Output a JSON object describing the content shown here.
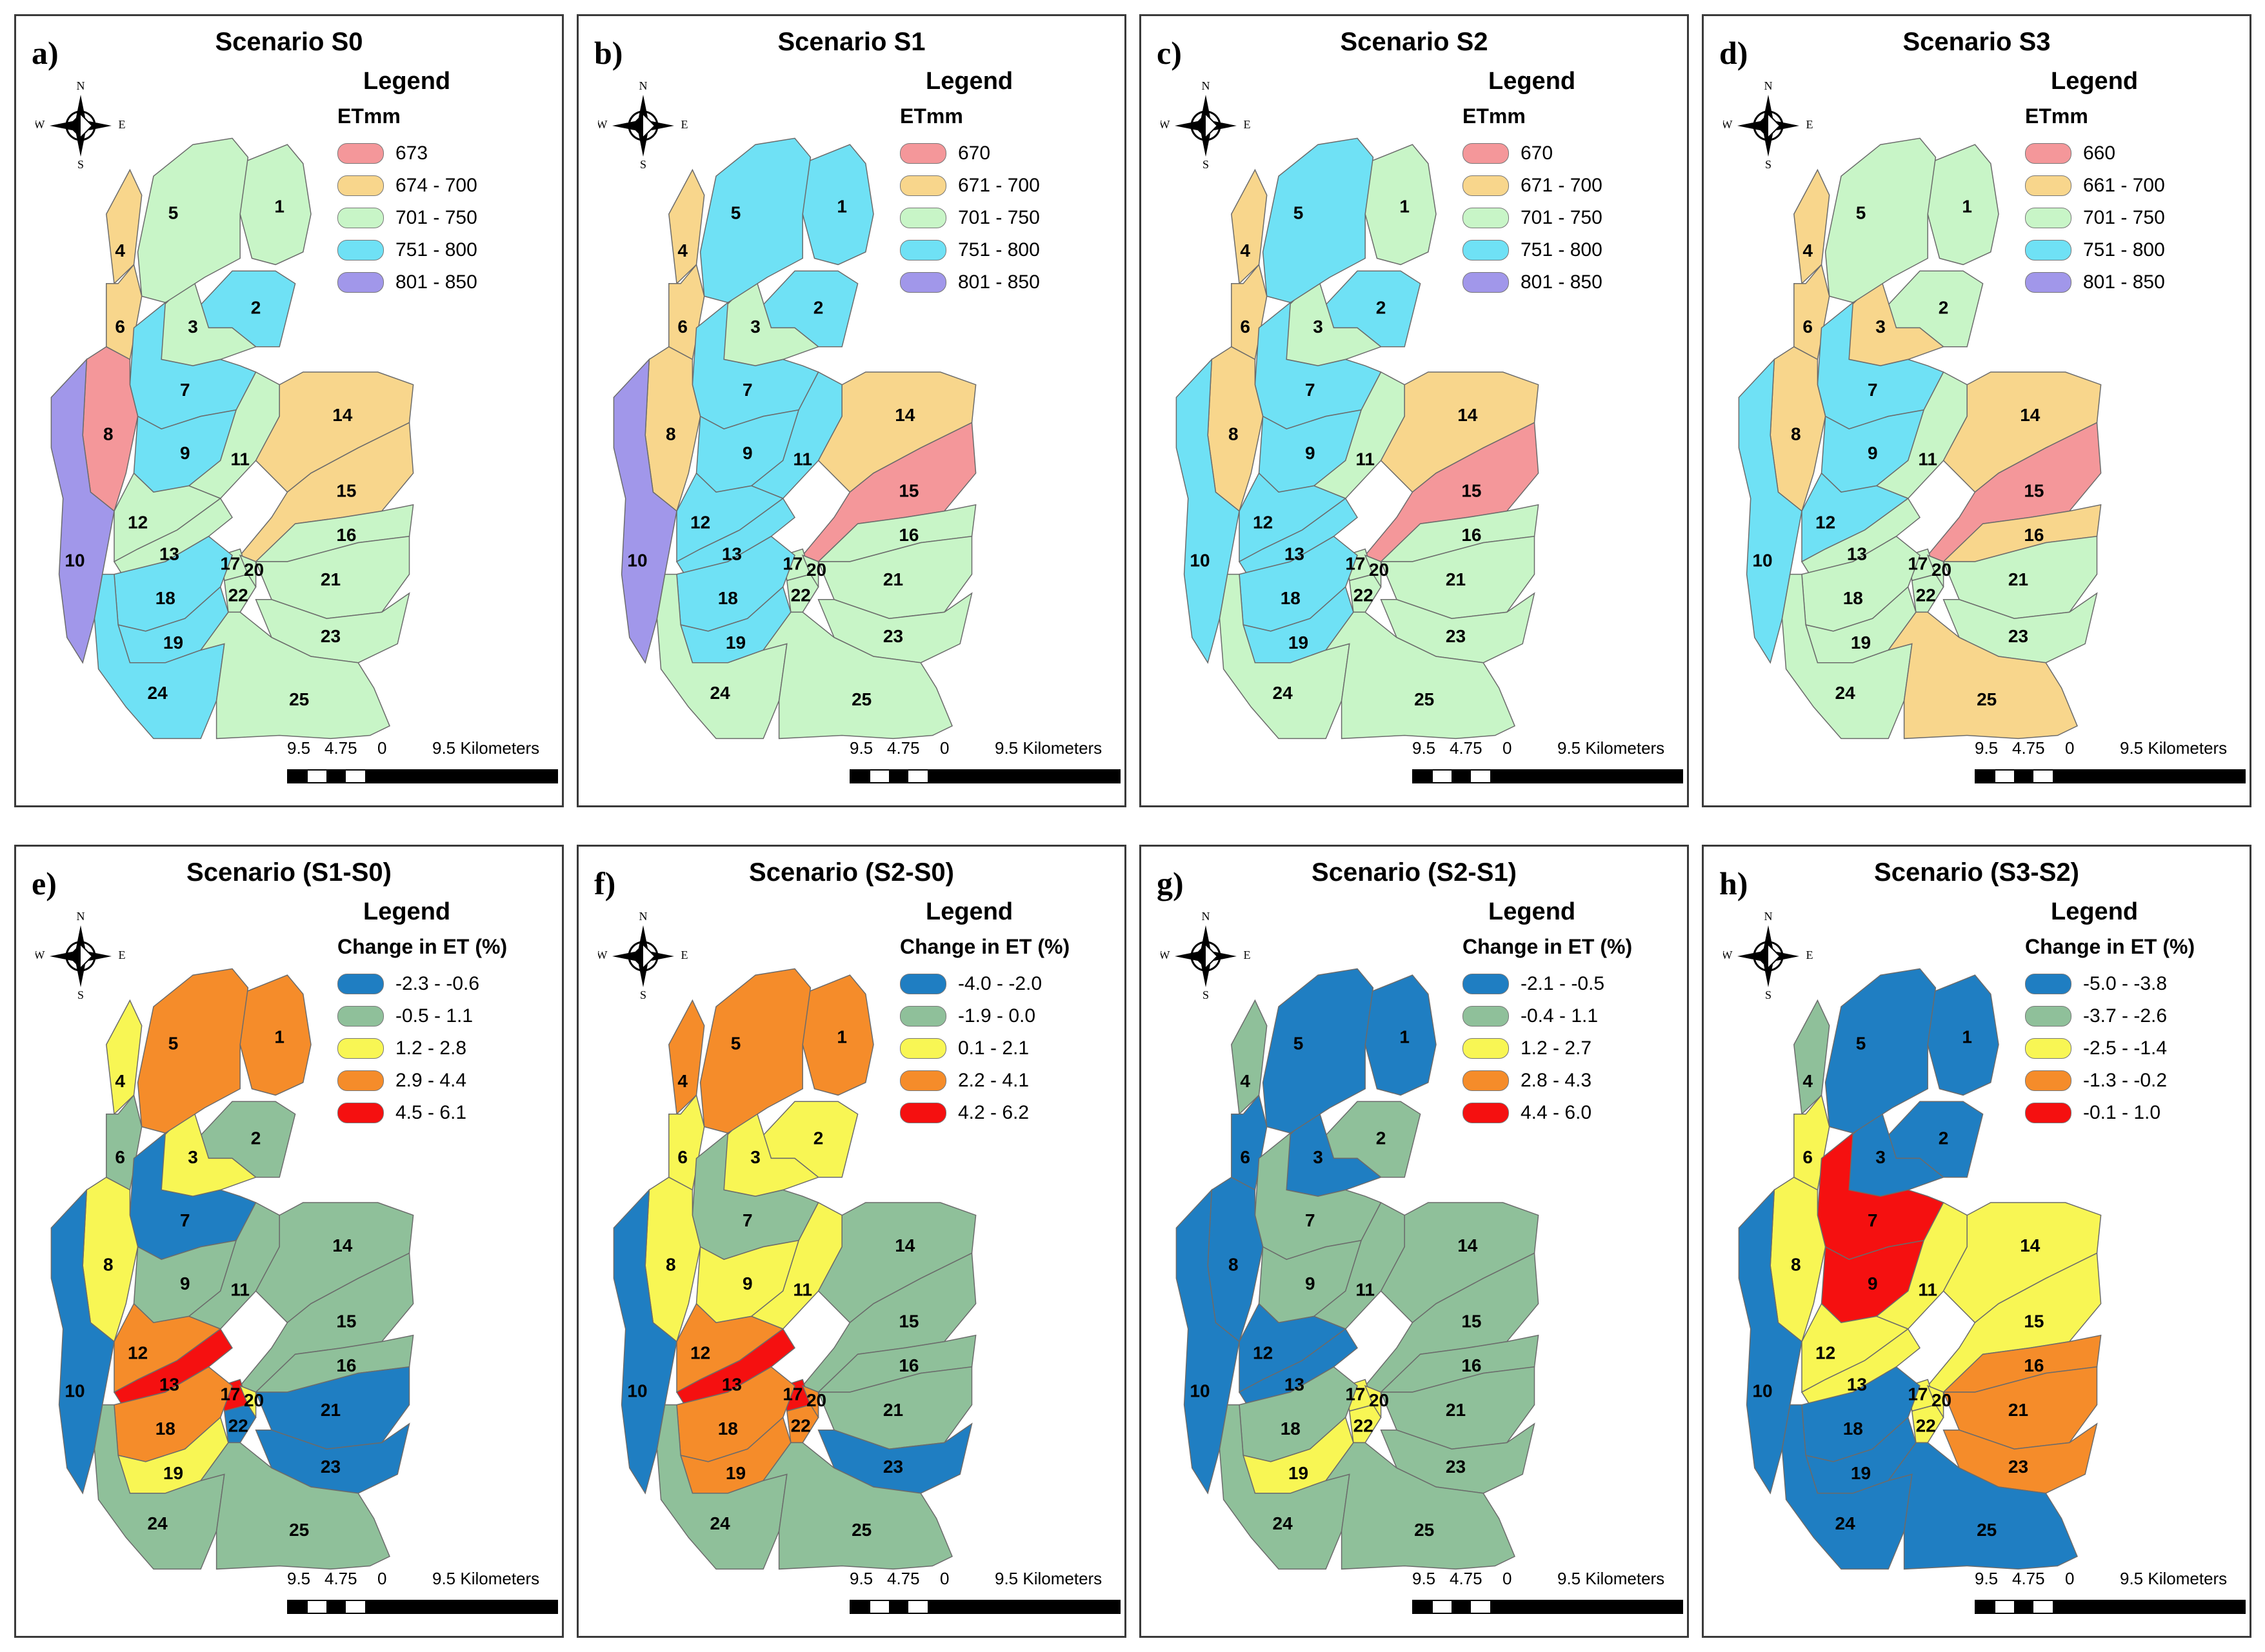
{
  "panels": [
    {
      "letter": "a)",
      "title": "Scenario S0",
      "legend_heading": "Legend",
      "legend_sub": "ETmm",
      "legend": [
        {
          "label": "673",
          "color": "#f4979a"
        },
        {
          "label": "674 - 700",
          "color": "#f8d68c"
        },
        {
          "label": "701 - 750",
          "color": "#c8f5c7"
        },
        {
          "label": "751 - 800",
          "color": "#6fe1f5"
        },
        {
          "label": "801 - 850",
          "color": "#a197ea"
        }
      ]
    },
    {
      "letter": "b)",
      "title": "Scenario S1",
      "legend_heading": "Legend",
      "legend_sub": "ETmm",
      "legend": [
        {
          "label": "670",
          "color": "#f4979a"
        },
        {
          "label": "671 - 700",
          "color": "#f8d68c"
        },
        {
          "label": "701 - 750",
          "color": "#c8f5c7"
        },
        {
          "label": "751 - 800",
          "color": "#6fe1f5"
        },
        {
          "label": "801 - 850",
          "color": "#a197ea"
        }
      ]
    },
    {
      "letter": "c)",
      "title": "Scenario S2",
      "legend_heading": "Legend",
      "legend_sub": "ETmm",
      "legend": [
        {
          "label": "670",
          "color": "#f4979a"
        },
        {
          "label": "671 - 700",
          "color": "#f8d68c"
        },
        {
          "label": "701 - 750",
          "color": "#c8f5c7"
        },
        {
          "label": "751 - 800",
          "color": "#6fe1f5"
        },
        {
          "label": "801 - 850",
          "color": "#a197ea"
        }
      ]
    },
    {
      "letter": "d)",
      "title": "Scenario S3",
      "legend_heading": "Legend",
      "legend_sub": "ETmm",
      "legend": [
        {
          "label": "660",
          "color": "#f4979a"
        },
        {
          "label": "661 - 700",
          "color": "#f8d68c"
        },
        {
          "label": "701 - 750",
          "color": "#c8f5c7"
        },
        {
          "label": "751 - 800",
          "color": "#6fe1f5"
        },
        {
          "label": "801 - 850",
          "color": "#a197ea"
        }
      ]
    },
    {
      "letter": "e)",
      "title": "Scenario (S1-S0)",
      "legend_heading": "Legend",
      "legend_sub": "Change in ET (%)",
      "legend": [
        {
          "label": "-2.3 - -0.6",
          "color": "#1f7ec2"
        },
        {
          "label": "-0.5 - 1.1",
          "color": "#8fc09a"
        },
        {
          "label": "1.2 - 2.8",
          "color": "#f8f654"
        },
        {
          "label": "2.9 - 4.4",
          "color": "#f58c2a"
        },
        {
          "label": "4.5 - 6.1",
          "color": "#f51010"
        }
      ]
    },
    {
      "letter": "f)",
      "title": "Scenario (S2-S0)",
      "legend_heading": "Legend",
      "legend_sub": "Change in ET (%)",
      "legend": [
        {
          "label": "-4.0 - -2.0",
          "color": "#1f7ec2"
        },
        {
          "label": "-1.9 - 0.0",
          "color": "#8fc09a"
        },
        {
          "label": "0.1 - 2.1",
          "color": "#f8f654"
        },
        {
          "label": "2.2 - 4.1",
          "color": "#f58c2a"
        },
        {
          "label": "4.2 - 6.2",
          "color": "#f51010"
        }
      ]
    },
    {
      "letter": "g)",
      "title": "Scenario (S2-S1)",
      "legend_heading": "Legend",
      "legend_sub": "Change in ET (%)",
      "legend": [
        {
          "label": "-2.1 - -0.5",
          "color": "#1f7ec2"
        },
        {
          "label": "-0.4 - 1.1",
          "color": "#8fc09a"
        },
        {
          "label": "1.2 - 2.7",
          "color": "#f8f654"
        },
        {
          "label": "2.8 - 4.3",
          "color": "#f58c2a"
        },
        {
          "label": "4.4 - 6.0",
          "color": "#f51010"
        }
      ]
    },
    {
      "letter": "h)",
      "title": "Scenario (S3-S2)",
      "legend_heading": "Legend",
      "legend_sub": "Change in ET (%)",
      "legend": [
        {
          "label": "-5.0 - -3.8",
          "color": "#1f7ec2"
        },
        {
          "label": "-3.7 - -2.6",
          "color": "#8fc09a"
        },
        {
          "label": "-2.5 - -1.4",
          "color": "#f8f654"
        },
        {
          "label": "-1.3 - -0.2",
          "color": "#f58c2a"
        },
        {
          "label": "-0.1 - 1.0",
          "color": "#f51010"
        }
      ]
    }
  ],
  "compass": {
    "n": "N",
    "s": "S",
    "e": "E",
    "w": "W"
  },
  "scale": {
    "labels": [
      "9.5",
      "4.75",
      "0",
      "9.5 Kilometers"
    ]
  },
  "subbasin_ids": [
    "1",
    "2",
    "3",
    "4",
    "5",
    "6",
    "7",
    "8",
    "9",
    "10",
    "11",
    "12",
    "13",
    "14",
    "15",
    "16",
    "17",
    "18",
    "19",
    "20",
    "21",
    "22",
    "23",
    "24",
    "25"
  ],
  "subbasin_classes": {
    "a": [
      3,
      4,
      3,
      2,
      3,
      2,
      4,
      1,
      4,
      5,
      3,
      3,
      3,
      2,
      2,
      3,
      3,
      4,
      4,
      3,
      3,
      3,
      3,
      4,
      3
    ],
    "b": [
      4,
      4,
      3,
      2,
      4,
      2,
      4,
      2,
      4,
      5,
      4,
      4,
      4,
      2,
      1,
      3,
      3,
      4,
      4,
      3,
      3,
      3,
      3,
      3,
      3
    ],
    "c": [
      3,
      4,
      3,
      2,
      4,
      2,
      4,
      2,
      4,
      4,
      3,
      4,
      4,
      2,
      1,
      3,
      3,
      4,
      4,
      3,
      3,
      3,
      3,
      3,
      3
    ],
    "d": [
      3,
      3,
      2,
      2,
      3,
      2,
      4,
      2,
      4,
      4,
      3,
      4,
      3,
      2,
      1,
      2,
      3,
      3,
      3,
      3,
      3,
      3,
      3,
      3,
      2
    ],
    "e": [
      4,
      2,
      3,
      3,
      4,
      2,
      1,
      3,
      2,
      1,
      2,
      4,
      5,
      2,
      2,
      2,
      5,
      4,
      3,
      3,
      1,
      1,
      1,
      2,
      2
    ],
    "f": [
      4,
      3,
      3,
      4,
      4,
      3,
      2,
      3,
      3,
      1,
      3,
      4,
      5,
      2,
      2,
      2,
      5,
      4,
      4,
      4,
      2,
      4,
      1,
      2,
      2
    ],
    "g": [
      1,
      2,
      1,
      2,
      1,
      1,
      2,
      1,
      2,
      1,
      2,
      1,
      1,
      2,
      2,
      2,
      3,
      2,
      3,
      3,
      2,
      3,
      2,
      2,
      2
    ],
    "h": [
      1,
      1,
      1,
      2,
      1,
      3,
      5,
      3,
      5,
      1,
      3,
      3,
      3,
      3,
      3,
      4,
      3,
      1,
      1,
      3,
      4,
      3,
      4,
      1,
      1
    ]
  }
}
